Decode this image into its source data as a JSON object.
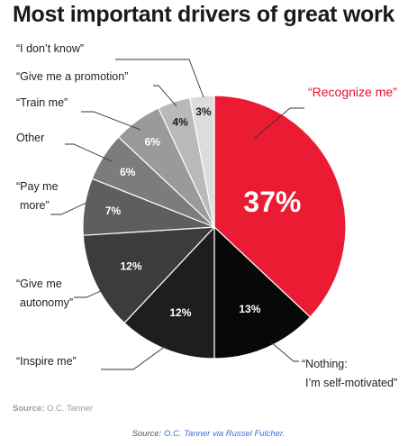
{
  "title": "Most important drivers of great work",
  "source": {
    "label": "Source:",
    "text": "O.C. Tanner"
  },
  "credit": {
    "prefix": "Source: ",
    "link": "O.C. Tanner via Russel Fulcher",
    "suffix": "."
  },
  "chart_data": {
    "type": "pie",
    "title": "Most important drivers of great work",
    "start_angle": "top, clockwise",
    "slices": [
      {
        "label": "“Recognize me”",
        "lines": [
          "“Recognize me”"
        ],
        "value": 37,
        "pct": "37%",
        "color": "#ea1b32"
      },
      {
        "label": "“Nothing: I’m self-motivated”",
        "lines": [
          "“Nothing:",
          "I’m self-motivated”"
        ],
        "value": 13,
        "pct": "13%",
        "color": "#080808"
      },
      {
        "label": "“Inspire me”",
        "lines": [
          "“Inspire me”"
        ],
        "value": 12,
        "pct": "12%",
        "color": "#1e1e1e"
      },
      {
        "label": "“Give me autonomy”",
        "lines": [
          "“Give me",
          "autonomy”"
        ],
        "value": 12,
        "pct": "12%",
        "color": "#3c3c3c"
      },
      {
        "label": "“Pay me more”",
        "lines": [
          "“Pay me",
          "more”"
        ],
        "value": 7,
        "pct": "7%",
        "color": "#5e5e5e"
      },
      {
        "label": "Other",
        "lines": [
          "Other"
        ],
        "value": 6,
        "pct": "6%",
        "color": "#7c7c7c"
      },
      {
        "label": "“Train me”",
        "lines": [
          "“Train me”"
        ],
        "value": 6,
        "pct": "6%",
        "color": "#9a9a9a"
      },
      {
        "label": "“Give me a promotion”",
        "lines": [
          "“Give me a promotion”"
        ],
        "value": 4,
        "pct": "4%",
        "color": "#b9b9b9"
      },
      {
        "label": "“I don’t know”",
        "lines": [
          "“I don’t know”"
        ],
        "value": 3,
        "pct": "3%",
        "color": "#dcdcdc"
      }
    ]
  }
}
